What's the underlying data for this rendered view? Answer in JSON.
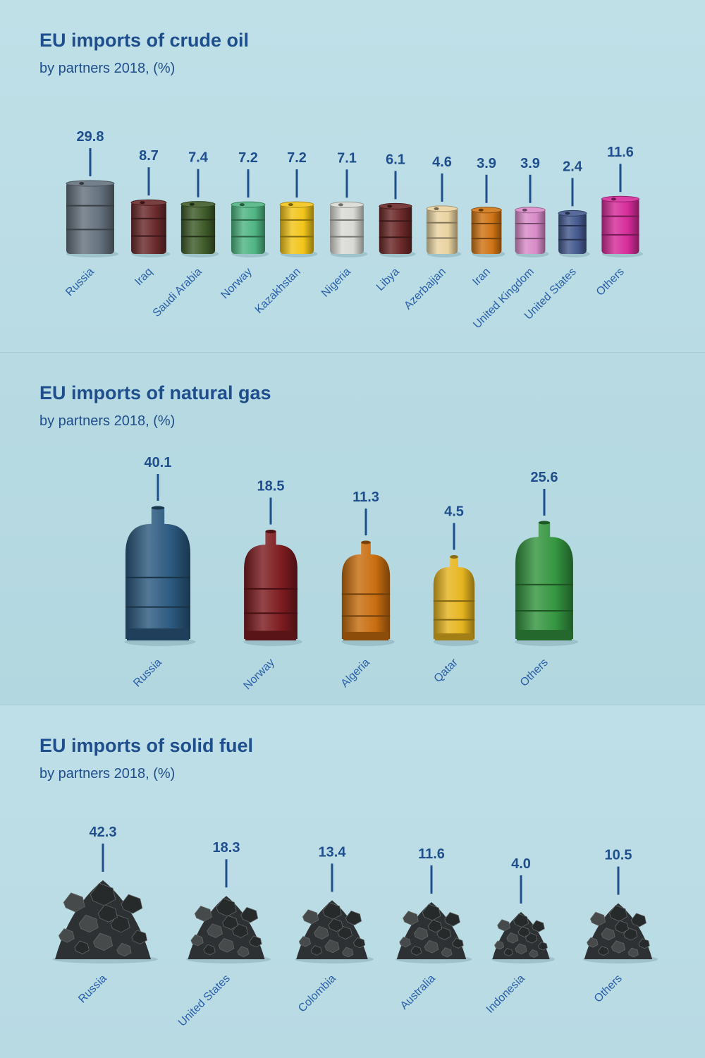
{
  "panels": {
    "oil": {
      "title": "EU imports of crude oil",
      "subtitle": "by partners 2018, (%)"
    },
    "gas": {
      "title": "EU imports of natural gas",
      "subtitle": "by partners 2018, (%)"
    },
    "coal": {
      "title": "EU imports of solid fuel",
      "subtitle": "by partners 2018, (%)"
    }
  },
  "chart_data": [
    {
      "type": "bar",
      "title": "EU imports of crude oil",
      "subtitle": "by partners 2018, (%)",
      "mark": "oil-barrel",
      "categories": [
        "Russia",
        "Iraq",
        "Saudi Arabia",
        "Norway",
        "Kazakhstan",
        "Nigeria",
        "Libya",
        "Azerbaijan",
        "Iran",
        "United Kingdom",
        "United States",
        "Others"
      ],
      "values": [
        29.8,
        8.7,
        7.4,
        7.2,
        7.2,
        7.1,
        6.1,
        4.6,
        3.9,
        3.9,
        2.4,
        11.6
      ],
      "colors": [
        "#65727e",
        "#6a2a2c",
        "#3f5b2a",
        "#4fb583",
        "#f2c51a",
        "#d9d9d5",
        "#6a2828",
        "#e9d3a1",
        "#cf7415",
        "#d98bc8",
        "#44598e",
        "#d62c9a"
      ]
    },
    {
      "type": "bar",
      "title": "EU imports of natural gas",
      "subtitle": "by partners 2018, (%)",
      "mark": "gas-cylinder",
      "categories": [
        "Russia",
        "Norway",
        "Algeria",
        "Qatar",
        "Others"
      ],
      "values": [
        40.1,
        18.5,
        11.3,
        4.5,
        25.6
      ],
      "colors": [
        "#2c5a80",
        "#7d1c20",
        "#c86e10",
        "#e6b520",
        "#349540"
      ]
    },
    {
      "type": "bar",
      "title": "EU imports of solid fuel",
      "subtitle": "by partners 2018, (%)",
      "mark": "coal-pile",
      "categories": [
        "Russia",
        "United States",
        "Colombia",
        "Australia",
        "Indonesia",
        "Others"
      ],
      "values": [
        42.3,
        18.3,
        13.4,
        11.6,
        4.0,
        10.5
      ],
      "colors": [
        "#2e3133",
        "#2e3133",
        "#2e3133",
        "#2e3133",
        "#2e3133",
        "#2e3133"
      ]
    }
  ]
}
